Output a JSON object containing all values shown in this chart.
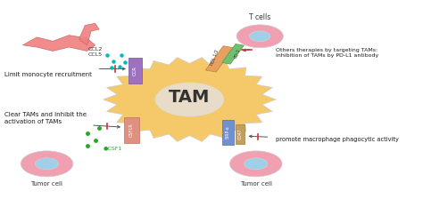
{
  "bg_color": "#ffffff",
  "tam_color": "#f5c96a",
  "tam_nucleus_color": "#e8dcc8",
  "tam_label": "TAM",
  "tam_label_fontsize": 14,
  "tam_label_color": "#333333",
  "tcell_color": "#f0a0b0",
  "tcell_nucleus_color": "#a0d0e8",
  "tcell_label": "T cells",
  "tumor_color": "#f0a0b0",
  "tumor_nucleus_color": "#a0d0e8",
  "tumor_label": "Tumor cell",
  "blood_vessel_color": "#f08080",
  "ccr_label": "CCR",
  "ccl_label": "CCL2\nCCL5",
  "pdl_label": "PDL 1/2",
  "pd1_label": "PD-1",
  "csf1r_label": "CSF1R",
  "csf1_label": "●CSF1",
  "sirp_label": "SIRP-α",
  "cd47_label": "CD47",
  "text_limit": "Limit monocyte recruitment",
  "text_clear": "Clear TAMs and inhibit the\nactivation of TAMs",
  "text_others": "Others therapies by targeting TAMs:\ninhibition of TAMs by PD-L1 antibody",
  "text_promote": "promote macrophage phagocytic activity",
  "arrow_color": "#555555",
  "inhibit_color": "#cc0000",
  "green_dot_color": "#22aa22",
  "teal_dot_color": "#00bbbb",
  "fig_width": 4.74,
  "fig_height": 2.24
}
